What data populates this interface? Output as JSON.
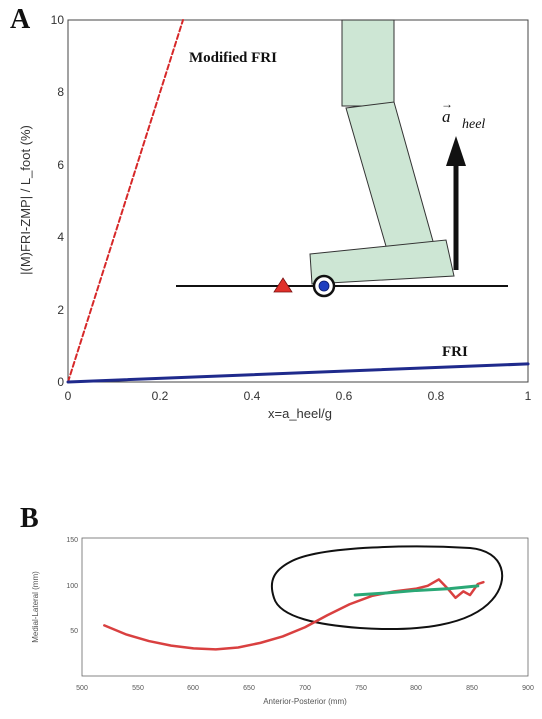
{
  "panel_a": {
    "letter": "A",
    "annotations": {
      "modified": "Modified FRI",
      "fri": "FRI",
      "accel": "a",
      "accel_sub": "heel",
      "accel_arrow": "→"
    }
  },
  "panel_b": {
    "letter": "B"
  },
  "chart_data": [
    {
      "type": "line",
      "xlabel": "x=a_heel/g",
      "ylabel": "|(M)FRI-ZMP| / L_foot (%)",
      "xlim": [
        0,
        1
      ],
      "ylim": [
        0,
        10
      ],
      "xticks": [
        "0",
        "0.2",
        "0.4",
        "0.6",
        "0.8",
        "1"
      ],
      "yticks": [
        "0",
        "2",
        "4",
        "6",
        "8",
        "10"
      ],
      "grid": false,
      "series": [
        {
          "name": "Modified FRI",
          "color": "#d62728",
          "style": "dashed",
          "x": [
            0,
            0.25
          ],
          "y": [
            0,
            10
          ]
        },
        {
          "name": "FRI",
          "color": "#1f2a8c",
          "style": "solid",
          "x": [
            0,
            1
          ],
          "y": [
            0,
            0.5
          ]
        }
      ]
    },
    {
      "type": "line",
      "xlabel": "Anterior-Posterior (mm)",
      "ylabel": "Medial-Lateral (mm)",
      "xlim": [
        500,
        900
      ],
      "ylim": [
        0,
        150
      ],
      "xticks": [
        "500",
        "550",
        "600",
        "650",
        "700",
        "750",
        "800",
        "850",
        "900"
      ],
      "yticks": [
        "50",
        "100",
        "150"
      ],
      "grid": false,
      "series": [
        {
          "color": "#d94040",
          "x": [
            520,
            540,
            560,
            580,
            600,
            620,
            640,
            660,
            680,
            700,
            720,
            740,
            760,
            780,
            800,
            810,
            820,
            828,
            835,
            842,
            848,
            855,
            860
          ],
          "y": [
            55,
            45,
            38,
            33,
            30,
            29,
            31,
            36,
            43,
            53,
            66,
            78,
            87,
            92,
            95,
            98,
            105,
            95,
            85,
            92,
            88,
            100,
            102
          ]
        },
        {
          "color": "#2aa876",
          "x": [
            745,
            770,
            800,
            830,
            855
          ],
          "y": [
            88,
            90,
            93,
            95,
            98
          ]
        }
      ]
    }
  ]
}
